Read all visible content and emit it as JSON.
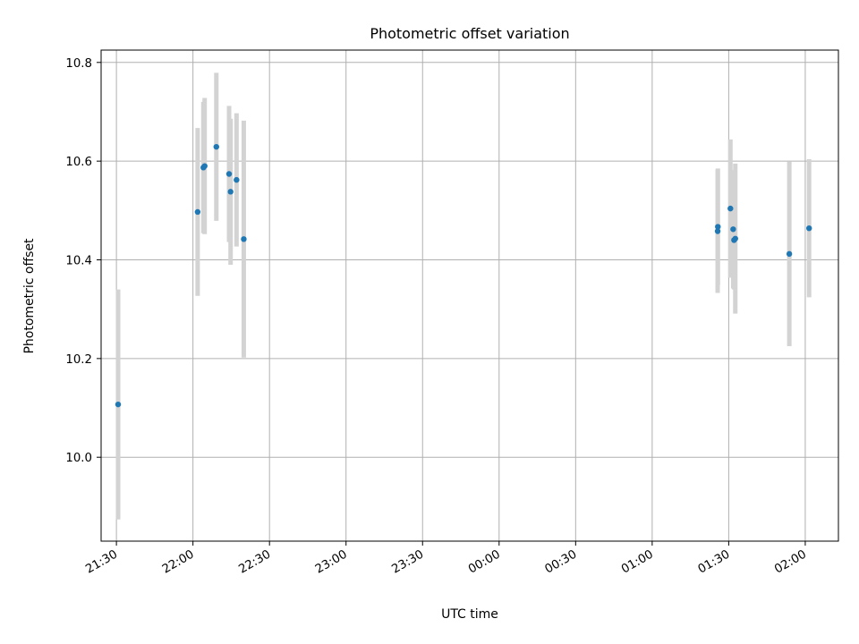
{
  "chart_data": {
    "type": "scatter",
    "title": "Photometric offset variation",
    "xlabel": "UTC time",
    "ylabel": "Photometric offset",
    "x_axis_type": "time",
    "xlim": [
      "2000-01-01T21:24:00",
      "2000-01-02T02:13:00"
    ],
    "ylim": [
      9.83,
      10.825
    ],
    "x_ticks": [
      {
        "label": "21:30",
        "t": "2000-01-01T21:30:00"
      },
      {
        "label": "22:00",
        "t": "2000-01-01T22:00:00"
      },
      {
        "label": "22:30",
        "t": "2000-01-01T22:30:00"
      },
      {
        "label": "23:00",
        "t": "2000-01-01T23:00:00"
      },
      {
        "label": "23:30",
        "t": "2000-01-01T23:30:00"
      },
      {
        "label": "00:00",
        "t": "2000-01-02T00:00:00"
      },
      {
        "label": "00:30",
        "t": "2000-01-02T00:30:00"
      },
      {
        "label": "01:00",
        "t": "2000-01-02T01:00:00"
      },
      {
        "label": "01:30",
        "t": "2000-01-02T01:30:00"
      },
      {
        "label": "02:00",
        "t": "2000-01-02T02:00:00"
      }
    ],
    "y_ticks": [
      {
        "label": "10.0",
        "value": 10.0
      },
      {
        "label": "10.2",
        "value": 10.2
      },
      {
        "label": "10.4",
        "value": 10.4
      },
      {
        "label": "10.6",
        "value": 10.6
      },
      {
        "label": "10.8",
        "value": 10.8
      }
    ],
    "grid": true,
    "marker_color": "#1f77b4",
    "errorbar_color": "#d3d3d3",
    "points": [
      {
        "x": "2000-01-01T21:30:40",
        "y": 10.107,
        "err": 0.233
      },
      {
        "x": "2000-01-01T22:01:50",
        "y": 10.497,
        "err": 0.17
      },
      {
        "x": "2000-01-01T22:04:05",
        "y": 10.587,
        "err": 0.133
      },
      {
        "x": "2000-01-01T22:04:35",
        "y": 10.59,
        "err": 0.138
      },
      {
        "x": "2000-01-01T22:09:10",
        "y": 10.629,
        "err": 0.15
      },
      {
        "x": "2000-01-01T22:14:10",
        "y": 10.574,
        "err": 0.138
      },
      {
        "x": "2000-01-01T22:14:45",
        "y": 10.538,
        "err": 0.148
      },
      {
        "x": "2000-01-01T22:17:05",
        "y": 10.562,
        "err": 0.135
      },
      {
        "x": "2000-01-01T22:19:55",
        "y": 10.442,
        "err": 0.24
      },
      {
        "x": "2000-01-02T01:25:40",
        "y": 10.458,
        "err": 0.125
      },
      {
        "x": "2000-01-02T01:25:45",
        "y": 10.467,
        "err": 0.118
      },
      {
        "x": "2000-01-02T01:30:40",
        "y": 10.504,
        "err": 0.14
      },
      {
        "x": "2000-01-02T01:31:45",
        "y": 10.462,
        "err": 0.12
      },
      {
        "x": "2000-01-02T01:32:05",
        "y": 10.44,
        "err": 0.1
      },
      {
        "x": "2000-01-02T01:32:35",
        "y": 10.443,
        "err": 0.152
      },
      {
        "x": "2000-01-02T01:53:45",
        "y": 10.412,
        "err": 0.187
      },
      {
        "x": "2000-01-02T02:01:30",
        "y": 10.464,
        "err": 0.14
      }
    ]
  }
}
